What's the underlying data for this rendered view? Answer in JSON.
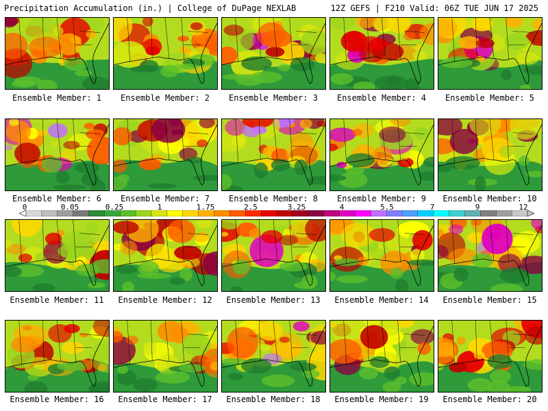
{
  "header": {
    "left": "Precipitation Accumulation (in.) | College of DuPage NEXLAB",
    "right": "12Z GEFS | F210 Valid: 06Z TUE JUN 17 2025"
  },
  "members": [
    {
      "label": "Ensemble Member: 1",
      "wet": 0.45,
      "seed": 11
    },
    {
      "label": "Ensemble Member: 2",
      "wet": 0.55,
      "seed": 23
    },
    {
      "label": "Ensemble Member: 3",
      "wet": 0.8,
      "seed": 37
    },
    {
      "label": "Ensemble Member: 4",
      "wet": 0.55,
      "seed": 41
    },
    {
      "label": "Ensemble Member: 5",
      "wet": 0.55,
      "seed": 53
    },
    {
      "label": "Ensemble Member: 6",
      "wet": 0.65,
      "seed": 67
    },
    {
      "label": "Ensemble Member: 7",
      "wet": 0.5,
      "seed": 71
    },
    {
      "label": "Ensemble Member: 8",
      "wet": 0.75,
      "seed": 83
    },
    {
      "label": "Ensemble Member: 9",
      "wet": 0.7,
      "seed": 97
    },
    {
      "label": "Ensemble Member: 10",
      "wet": 0.7,
      "seed": 101
    },
    {
      "label": "Ensemble Member: 11",
      "wet": 0.45,
      "seed": 113
    },
    {
      "label": "Ensemble Member: 12",
      "wet": 0.55,
      "seed": 127
    },
    {
      "label": "Ensemble Member: 13",
      "wet": 0.55,
      "seed": 131
    },
    {
      "label": "Ensemble Member: 14",
      "wet": 0.45,
      "seed": 149
    },
    {
      "label": "Ensemble Member: 15",
      "wet": 0.75,
      "seed": 151
    },
    {
      "label": "Ensemble Member: 16",
      "wet": 0.55,
      "seed": 163
    },
    {
      "label": "Ensemble Member: 17",
      "wet": 0.5,
      "seed": 173
    },
    {
      "label": "Ensemble Member: 18",
      "wet": 0.65,
      "seed": 181
    },
    {
      "label": "Ensemble Member: 19",
      "wet": 0.5,
      "seed": 191
    },
    {
      "label": "Ensemble Member: 20",
      "wet": 0.55,
      "seed": 199
    }
  ],
  "colorbar": {
    "labels": [
      "0",
      "0.05",
      "0.25",
      "1",
      "1.75",
      "2.5",
      "3.25",
      "4",
      "5.5",
      "7",
      "9",
      "12"
    ],
    "colors": [
      "#d9d9d9",
      "#bdbdbd",
      "#9e9e9e",
      "#7a7a7a",
      "#2e8b3a",
      "#3aa63e",
      "#5cbf2a",
      "#9bd61e",
      "#d6e60f",
      "#ffff00",
      "#ffd700",
      "#ffb000",
      "#ff8c00",
      "#ff5a00",
      "#ff2a00",
      "#e60000",
      "#c00000",
      "#a00020",
      "#8b0040",
      "#c0007a",
      "#e000c0",
      "#ff00ff",
      "#c070ff",
      "#8080ff",
      "#50a0ff",
      "#00d0ff",
      "#00ffff",
      "#40d0d0",
      "#60b0b0",
      "#808080",
      "#a0a0a0",
      "#c8c8c8"
    ]
  }
}
